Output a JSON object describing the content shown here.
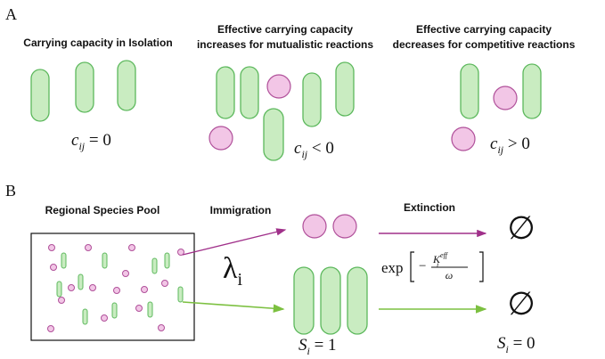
{
  "panel_a": {
    "label": "A",
    "isolation": {
      "title": "Carrying capacity in Isolation",
      "eq": {
        "base": "c",
        "sub": "ij",
        "rel": " = 0"
      }
    },
    "mutualistic": {
      "title": [
        "Effective carrying capacity",
        "increases for mutualistic reactions"
      ],
      "eq": {
        "base": "c",
        "sub": "ij",
        "rel": " < 0"
      }
    },
    "competitive": {
      "title": [
        "Effective carrying capacity",
        "decreases for competitive reactions"
      ],
      "eq": {
        "base": "c",
        "sub": "ij",
        "rel": " > 0"
      }
    }
  },
  "panel_b": {
    "label": "B",
    "pool": "Regional Species Pool",
    "immigration": "Immigration",
    "extinction": "Extinction",
    "rate": {
      "base": "λ",
      "sub": "i"
    },
    "ext_rate": {
      "fn": "exp",
      "sym": "K",
      "sub": "i",
      "sup": "eff",
      "den": "ω"
    },
    "empty": "∅",
    "present": {
      "base": "S",
      "sub": "i",
      "rel": " = 1"
    },
    "absent": {
      "base": "S",
      "sub": "i",
      "rel": " = 0"
    }
  }
}
